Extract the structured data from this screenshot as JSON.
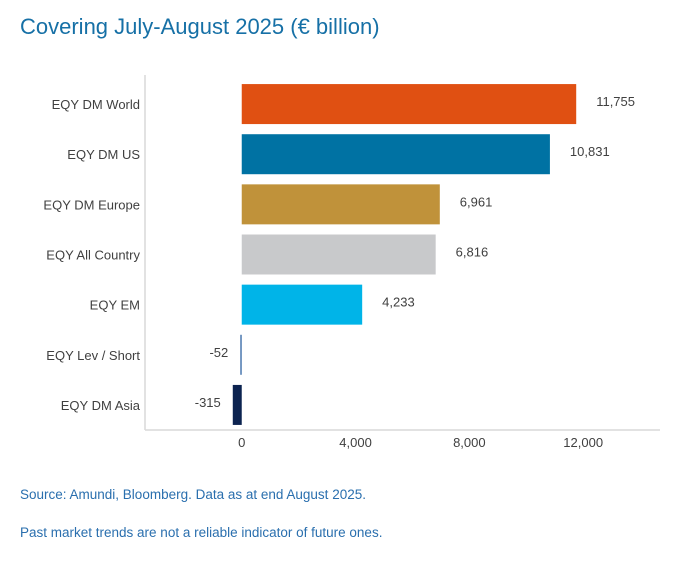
{
  "title": "Covering July-August 2025 (€ billion)",
  "source": "Source: Amundi, Bloomberg. Data as at end August 2025.",
  "disclaimer": "Past market trends are not a reliable indicator of future ones.",
  "chart_data": {
    "type": "bar",
    "orientation": "horizontal",
    "title": "Covering July-August 2025 (€ billion)",
    "categories": [
      "EQY DM World",
      "EQY DM US",
      "EQY DM Europe",
      "EQY All Country",
      "EQY EM",
      "EQY Lev / Short",
      "EQY DM Asia"
    ],
    "values": [
      11755,
      10831,
      6961,
      6816,
      4233,
      -52,
      -315
    ],
    "value_labels": [
      "11,755",
      "10,831",
      "6,961",
      "6,816",
      "4,233",
      "-52",
      "-315"
    ],
    "colors": [
      "#e05012",
      "#0072a3",
      "#c0923a",
      "#c8c9cb",
      "#00b4e8",
      "#4a78b0",
      "#0c2350"
    ],
    "xticks": [
      0,
      4000,
      8000,
      12000
    ],
    "xtick_labels": [
      "0",
      "4,000",
      "8,000",
      "12,000"
    ],
    "xlim": [
      -3400,
      14700
    ],
    "grid": false,
    "legend": "none",
    "xlabel": "",
    "ylabel": ""
  }
}
